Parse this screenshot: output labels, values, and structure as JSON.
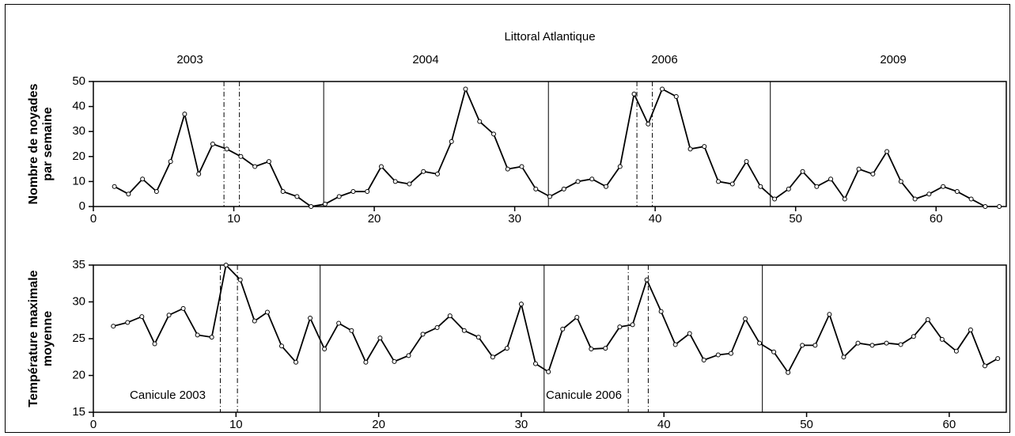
{
  "chart_data": [
    {
      "type": "line",
      "title": "Littoral Atlantique",
      "annotations": [
        "2003",
        "2004",
        "2006",
        "2009"
      ],
      "y_label": "Nombre de noyades par semaine",
      "x": [
        1.5,
        2.5,
        3.5,
        4.5,
        5.5,
        6.5,
        7.5,
        8.5,
        9.5,
        10.5,
        11.5,
        12.5,
        13.5,
        14.5,
        15.5,
        16.5,
        17.5,
        18.5,
        19.5,
        20.5,
        21.5,
        22.5,
        23.5,
        24.5,
        25.5,
        26.5,
        27.5,
        28.5,
        29.5,
        30.5,
        31.5,
        32.5,
        33.5,
        34.5,
        35.5,
        36.5,
        37.5,
        38.5,
        39.5,
        40.5,
        41.5,
        42.5,
        43.5,
        44.5,
        45.5,
        46.5,
        47.5,
        48.5,
        49.5,
        50.5,
        51.5,
        52.5,
        53.5,
        54.5,
        55.5,
        56.5,
        57.5,
        58.5,
        59.5,
        60.5,
        61.5,
        62.5,
        63.5,
        64.5
      ],
      "values": [
        8,
        5,
        11,
        6,
        18,
        37,
        13,
        25,
        23,
        20,
        16,
        18,
        6,
        4,
        0,
        1,
        4,
        6,
        6,
        16,
        10,
        9,
        14,
        13,
        26,
        47,
        34,
        29,
        15,
        16,
        7,
        4,
        7,
        10,
        11,
        8,
        16,
        45,
        33,
        47,
        44,
        23,
        24,
        10,
        9,
        18,
        8,
        3,
        7,
        14,
        8,
        11,
        3,
        15,
        13,
        22,
        10,
        3,
        5,
        8,
        6,
        3,
        0,
        0
      ],
      "color": "#000000",
      "xlim": [
        0,
        65
      ],
      "xticks": [
        0,
        10,
        20,
        30,
        40,
        50,
        60
      ],
      "ylim": [
        0,
        50
      ],
      "yticks": [
        0,
        10,
        20,
        30,
        40,
        50
      ],
      "vlines": [
        16.4,
        32.4,
        48.2
      ],
      "dashed_vlines": [
        9.3,
        10.4,
        38.7,
        39.8
      ]
    },
    {
      "type": "line",
      "annotations": [
        "Canicule 2003",
        "Canicule 2006"
      ],
      "y_label": "Température maximale moyenne",
      "x": [
        1.4,
        2.4,
        3.4,
        4.3,
        5.3,
        6.3,
        7.3,
        8.3,
        9.3,
        10.3,
        11.3,
        12.2,
        13.2,
        14.2,
        15.2,
        16.2,
        17.2,
        18.1,
        19.1,
        20.1,
        21.1,
        22.1,
        23.1,
        24.1,
        25,
        26,
        27,
        28,
        29,
        30,
        31,
        31.9,
        32.9,
        33.9,
        34.9,
        35.9,
        36.9,
        37.8,
        38.8,
        39.8,
        40.8,
        41.8,
        42.8,
        43.8,
        44.7,
        45.7,
        46.7,
        47.7,
        48.7,
        49.7,
        50.6,
        51.6,
        52.6,
        53.6,
        54.6,
        55.6,
        56.6,
        57.5,
        58.5,
        59.5,
        60.5,
        61.5,
        62.5,
        63.4
      ],
      "values": [
        26.7,
        27.2,
        28,
        24.3,
        28.2,
        29.1,
        25.5,
        25.2,
        35,
        33,
        27.4,
        28.6,
        24,
        21.8,
        27.8,
        23.6,
        27.1,
        26.1,
        21.8,
        25.1,
        21.9,
        22.7,
        25.6,
        26.5,
        28.1,
        26.1,
        25.2,
        22.5,
        23.7,
        29.7,
        21.6,
        20.5,
        26.3,
        27.9,
        23.6,
        23.7,
        26.6,
        26.9,
        33,
        28.7,
        24.2,
        25.7,
        22.1,
        22.8,
        23,
        27.7,
        24.4,
        23.2,
        20.4,
        24.1,
        24.1,
        28.3,
        22.5,
        24.4,
        24.1,
        24.4,
        24.2,
        25.3,
        27.6,
        24.9,
        23.3,
        26.2,
        21.3,
        22.3
      ],
      "color": "#000000",
      "xlim": [
        0,
        64
      ],
      "xticks": [
        0,
        10,
        20,
        30,
        40,
        50,
        60
      ],
      "ylim": [
        15,
        35
      ],
      "yticks": [
        15,
        20,
        25,
        30,
        35
      ],
      "vlines": [
        15.9,
        31.6,
        46.9
      ],
      "dashed_vlines": [
        8.9,
        10.1,
        37.5,
        38.9
      ]
    }
  ]
}
